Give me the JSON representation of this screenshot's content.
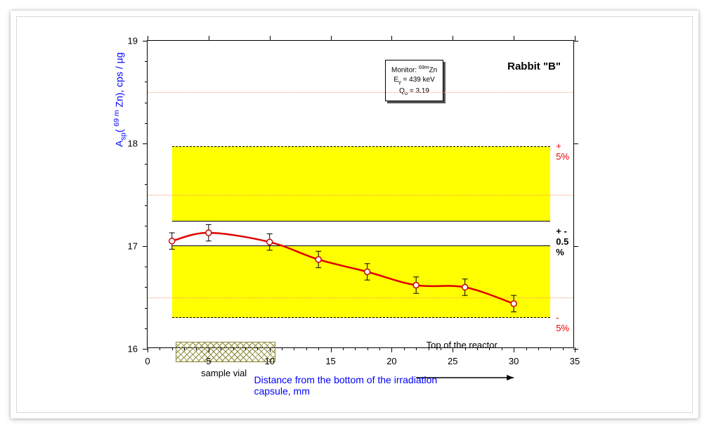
{
  "chart": {
    "type": "line-scatter",
    "x_axis": {
      "title": "Distance from the bottom of the irradiation capsule,  mm",
      "min": 0,
      "max": 35,
      "major_ticks": [
        0,
        5,
        10,
        15,
        20,
        25,
        30,
        35
      ],
      "title_color": "#0000ff",
      "label_fontsize": 13,
      "title_fontsize": 14
    },
    "y_axis": {
      "title_prefix": "A",
      "title_sub": "sp",
      "title_nuclide_sup": "69 m",
      "title_nuclide": " Zn), cps / µg",
      "min": 16,
      "max": 19,
      "major_ticks": [
        16,
        17,
        18,
        19
      ],
      "title_color": "#0000ff",
      "label_fontsize": 13,
      "title_fontsize": 14
    },
    "grid_color": "#ff9966",
    "background_color": "#ffffff",
    "plot_border_color": "#000000",
    "yellow_band": {
      "ymin": 16.3,
      "ymax": 17.97,
      "color": "#ffff00",
      "xmin": 2,
      "xmax": 33
    },
    "white_band": {
      "ymin": 17.0,
      "ymax": 17.25,
      "color": "#ffffff",
      "xmin": 2,
      "xmax": 33
    },
    "center_line_y": 17.13,
    "series": {
      "color": "#dd0000",
      "line_width": 2.5,
      "marker": "circle",
      "marker_fill": "#ffffff",
      "marker_stroke": "#cc0000",
      "marker_size": 8,
      "points": [
        {
          "x": 2,
          "y": 17.05,
          "err": 0.08
        },
        {
          "x": 5,
          "y": 17.13,
          "err": 0.08
        },
        {
          "x": 10,
          "y": 17.04,
          "err": 0.08
        },
        {
          "x": 14,
          "y": 16.87,
          "err": 0.08
        },
        {
          "x": 18,
          "y": 16.75,
          "err": 0.08
        },
        {
          "x": 22,
          "y": 16.62,
          "err": 0.08
        },
        {
          "x": 26,
          "y": 16.6,
          "err": 0.08
        },
        {
          "x": 30,
          "y": 16.44,
          "err": 0.08
        }
      ]
    },
    "legend": {
      "line1_label": "Monitor:  ",
      "line1_sup": "69m",
      "line1_elem": "Zn",
      "line2_symbol": "E",
      "line2_sub": "γ",
      "line2_rest": " = 439 keV",
      "line3_symbol": "Q",
      "line3_sub": "o",
      "line3_rest": " = 3.19"
    },
    "annotations": {
      "title_right": "Rabbit \"B\"",
      "plus5": "+ 5%",
      "minus5": "- 5%",
      "pm05": "+ -  0.5 %",
      "sample_vial": "sample vial",
      "top_reactor": "Top of the reactor",
      "plus5_color": "#ee0000",
      "minus5_color": "#ee0000",
      "pm05_color": "#000000"
    },
    "sample_vial_box": {
      "xmin": 2.3,
      "xmax": 10.5,
      "ymin": 15.87,
      "ymax": 16.07
    },
    "arrow": {
      "x_from": 22,
      "x_to": 30,
      "y": 15.68
    }
  }
}
